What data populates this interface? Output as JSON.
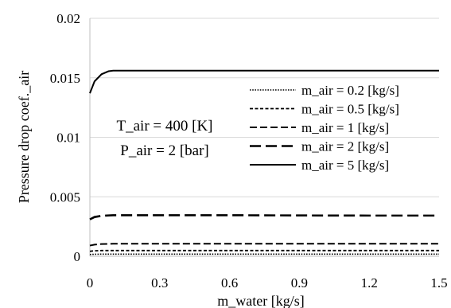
{
  "chart_data": {
    "type": "line",
    "xlabel": "m_water [kg/s]",
    "ylabel": "Pressure drop coef._air",
    "xlim": [
      0,
      1.5
    ],
    "ylim": [
      0,
      0.02
    ],
    "x_ticks": [
      "0",
      "0.3",
      "0.6",
      "0.9",
      "1.2",
      "1.5"
    ],
    "y_ticks": [
      "0",
      "0.005",
      "0.01",
      "0.015",
      "0.02"
    ],
    "grid": "horizontal",
    "legend_position": "right",
    "annotations": [
      "T_air = 400 [K]",
      "P_air = 2 [bar]"
    ],
    "series": [
      {
        "name": "m_air = 0.2 [kg/s]",
        "dash": "dotted",
        "x": [
          0,
          0.02,
          0.05,
          0.1,
          0.15,
          0.3,
          0.6,
          0.9,
          1.2,
          1.5
        ],
        "y": [
          0.00015,
          0.00017,
          0.00018,
          0.00018,
          0.00018,
          0.00018,
          0.00018,
          0.00018,
          0.00018,
          0.00018
        ]
      },
      {
        "name": "m_air = 0.5 [kg/s]",
        "dash": "short-dash",
        "x": [
          0,
          0.02,
          0.05,
          0.1,
          0.15,
          0.3,
          0.6,
          0.9,
          1.2,
          1.5
        ],
        "y": [
          0.00042,
          0.00046,
          0.00048,
          0.00048,
          0.00048,
          0.00048,
          0.00048,
          0.00048,
          0.00048,
          0.00048
        ]
      },
      {
        "name": "m_air = 1 [kg/s]",
        "dash": "dash",
        "x": [
          0,
          0.02,
          0.05,
          0.1,
          0.15,
          0.3,
          0.6,
          0.9,
          1.2,
          1.5
        ],
        "y": [
          0.0009,
          0.00098,
          0.00103,
          0.00105,
          0.00105,
          0.00105,
          0.00105,
          0.00105,
          0.00105,
          0.00105
        ]
      },
      {
        "name": "m_air = 2 [kg/s]",
        "dash": "long-dash",
        "x": [
          0,
          0.02,
          0.05,
          0.1,
          0.15,
          0.3,
          0.6,
          0.9,
          1.2,
          1.5
        ],
        "y": [
          0.0031,
          0.0033,
          0.0034,
          0.00345,
          0.00345,
          0.00345,
          0.00345,
          0.00343,
          0.00342,
          0.00342
        ]
      },
      {
        "name": "m_air = 5 [kg/s]",
        "dash": "solid",
        "x": [
          0,
          0.02,
          0.05,
          0.08,
          0.1,
          0.15,
          0.3,
          0.6,
          0.9,
          1.2,
          1.5
        ],
        "y": [
          0.0137,
          0.0147,
          0.0153,
          0.01555,
          0.0156,
          0.0156,
          0.0156,
          0.0156,
          0.0156,
          0.0156,
          0.0156
        ]
      }
    ]
  }
}
